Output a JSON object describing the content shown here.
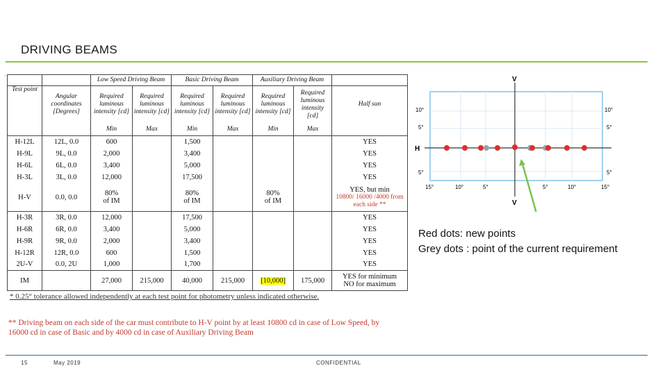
{
  "page_title": "DRIVING BEAMS",
  "table": {
    "group_headers": [
      "Low Speed Driving Beam",
      "Basic Driving Beam",
      "Auxiliary Driving Beam"
    ],
    "col_headers": [
      "Test point",
      "Angular coordinates [Degrees]",
      "Required luminous intensity [cd]",
      "Required luminous intensity [cd]",
      "Required luminous intensity [cd]",
      "Required luminous intensity [cd]",
      "Required luminous intensity [cd]",
      "Required luminous intensity [cd]",
      "Half sun"
    ],
    "minmax": [
      "Min",
      "Max",
      "Min",
      "Max",
      "Min",
      "Max"
    ],
    "rows": [
      {
        "tp": "H-12L",
        "ang": "12L, 0.0",
        "lmin": "600",
        "lmax": "",
        "bmin": "1,500",
        "bmax": "",
        "amin": "",
        "amax": "",
        "half": "YES"
      },
      {
        "tp": "H-9L",
        "ang": "9L, 0.0",
        "lmin": "2,000",
        "lmax": "",
        "bmin": "3,400",
        "bmax": "",
        "amin": "",
        "amax": "",
        "half": "YES"
      },
      {
        "tp": "H-6L",
        "ang": "6L, 0.0",
        "lmin": "3,400",
        "lmax": "",
        "bmin": "5,000",
        "bmax": "",
        "amin": "",
        "amax": "",
        "half": "YES"
      },
      {
        "tp": "H-3L",
        "ang": "3L, 0.0",
        "lmin": "12,000",
        "lmax": "",
        "bmin": "17,500",
        "bmax": "",
        "amin": "",
        "amax": "",
        "half": "YES"
      },
      {
        "tp": "H-V",
        "ang": "0.0, 0.0",
        "lmin": "80%",
        "lmin2": "of IM",
        "lmax": "",
        "bmin": "80%",
        "bmin2": "of IM",
        "bmax": "",
        "amin": "80%",
        "amin2": "of IM",
        "amax": "",
        "half": "YES, but min",
        "half_note": "10800/ 16000 /4000 from each side **"
      },
      {
        "tp": "H-3R",
        "ang": "3R, 0.0",
        "lmin": "12,000",
        "lmax": "",
        "bmin": "17,500",
        "bmax": "",
        "amin": "",
        "amax": "",
        "half": "YES"
      },
      {
        "tp": "H-6R",
        "ang": "6R, 0.0",
        "lmin": "3,400",
        "lmax": "",
        "bmin": "5,000",
        "bmax": "",
        "amin": "",
        "amax": "",
        "half": "YES"
      },
      {
        "tp": "H-9R",
        "ang": "9R, 0.0",
        "lmin": "2,000",
        "lmax": "",
        "bmin": "3,400",
        "bmax": "",
        "amin": "",
        "amax": "",
        "half": "YES"
      },
      {
        "tp": "H-12R",
        "ang": "12R, 0.0",
        "lmin": "600",
        "lmax": "",
        "bmin": "1,500",
        "bmax": "",
        "amin": "",
        "amax": "",
        "half": "YES"
      },
      {
        "tp": "2U-V",
        "ang": "0.0, 2U",
        "lmin": "1,000",
        "lmax": "",
        "bmin": "1,700",
        "bmax": "",
        "amin": "",
        "amax": "",
        "half": "YES"
      }
    ],
    "im_row": {
      "tp": "IM",
      "lmin": "27,000",
      "lmax": "215,000",
      "bmin": "40,000",
      "bmax": "215,000",
      "amin": "[10,000]",
      "amax": "175,000",
      "half": "YES for minimum",
      "half2": "NO for maximum"
    }
  },
  "footnote1": "* 0.25° tolerance allowed independently at each test point for photometry unless indicated otherwise.",
  "footnote2": "** Driving beam on each side of the car must contribute to H-V point by at least 10800 cd in case of Low Speed, by 16000 cd in case of Basic and by 4000 cd in case of Auxiliary Driving Beam",
  "diagram": {
    "v_top": "V",
    "v_bottom": "V",
    "h": "H",
    "left_labels": [
      "10°",
      "5°",
      "5°",
      "15°"
    ],
    "right_labels": [
      "10°",
      "5°",
      "5°",
      "15°"
    ],
    "bottom_labels": [
      "10°",
      "5°",
      "5°",
      "10°"
    ],
    "colors": {
      "red": "#d9302b",
      "grey": "#9aa1a6",
      "border": "#7fc4e8",
      "arrow": "#78c448"
    }
  },
  "caption": {
    "line1": "Red dots: new points",
    "line2": "Grey dots : point of the current requirement"
  },
  "footer": {
    "page": "15",
    "date": "May 2019",
    "label": "CONFIDENTIAL"
  }
}
